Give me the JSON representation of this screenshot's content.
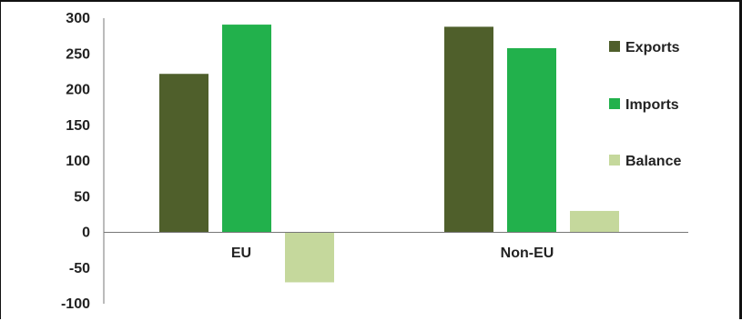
{
  "chart_data": {
    "type": "bar",
    "categories": [
      "EU",
      "Non-EU"
    ],
    "series": [
      {
        "name": "Exports",
        "values": [
          222,
          288
        ],
        "color": "#4f5f2b"
      },
      {
        "name": "Imports",
        "values": [
          291,
          258
        ],
        "color": "#22b14c"
      },
      {
        "name": "Balance",
        "values": [
          -70,
          30
        ],
        "color": "#c5d89c"
      }
    ],
    "yticks": [
      300,
      250,
      200,
      150,
      100,
      50,
      0,
      -50,
      -100
    ],
    "ylim": [
      -100,
      300
    ],
    "grid": false,
    "legend_position": "right"
  }
}
